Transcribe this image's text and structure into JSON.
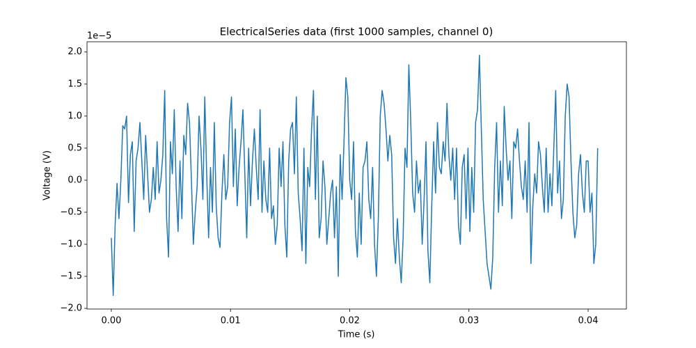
{
  "chart_data": {
    "type": "line",
    "title": "ElectricalSeries data (first 1000 samples, channel 0)",
    "xlabel": "Time (s)",
    "ylabel": "Voltage (V)",
    "y_offset_label": "1e−5",
    "color": "#1f77b4",
    "xlim": [
      -0.00204,
      0.04321
    ],
    "ylim": [
      -2.01,
      2.16
    ],
    "xticks": [
      {
        "value": 0,
        "label": "0.00"
      },
      {
        "value": 0.01,
        "label": "0.01"
      },
      {
        "value": 0.02,
        "label": "0.02"
      },
      {
        "value": 0.03,
        "label": "0.03"
      },
      {
        "value": 0.04,
        "label": "0.04"
      }
    ],
    "yticks": [
      {
        "value": -2,
        "label": "−2.0"
      },
      {
        "value": -1.5,
        "label": "−1.5"
      },
      {
        "value": -1,
        "label": "−1.0"
      },
      {
        "value": -0.5,
        "label": "−0.5"
      },
      {
        "value": 0,
        "label": "0.0"
      },
      {
        "value": 0.5,
        "label": "0.5"
      },
      {
        "value": 1,
        "label": "1.0"
      },
      {
        "value": 1.5,
        "label": "1.5"
      },
      {
        "value": 2,
        "label": "2.0"
      }
    ],
    "x": [
      0,
      0.00016,
      0.00032,
      0.00048,
      0.00064,
      0.0008,
      0.00096,
      0.00112,
      0.00128,
      0.00144,
      0.0016,
      0.00176,
      0.00192,
      0.00208,
      0.00224,
      0.0024,
      0.00256,
      0.00272,
      0.00288,
      0.00304,
      0.0032,
      0.00336,
      0.00352,
      0.00368,
      0.00384,
      0.004,
      0.00416,
      0.00432,
      0.00448,
      0.00464,
      0.0048,
      0.00496,
      0.00512,
      0.00528,
      0.00544,
      0.0056,
      0.00576,
      0.00592,
      0.00608,
      0.00624,
      0.0064,
      0.00656,
      0.00672,
      0.00688,
      0.00704,
      0.0072,
      0.00736,
      0.00752,
      0.00768,
      0.00784,
      0.008,
      0.00816,
      0.00832,
      0.00848,
      0.00864,
      0.0088,
      0.00896,
      0.00912,
      0.00928,
      0.00944,
      0.0096,
      0.00976,
      0.00992,
      0.01008,
      0.01024,
      0.0104,
      0.01056,
      0.01072,
      0.01088,
      0.01104,
      0.0112,
      0.01136,
      0.01152,
      0.01168,
      0.01184,
      0.012,
      0.01216,
      0.01232,
      0.01248,
      0.01264,
      0.0128,
      0.01296,
      0.01312,
      0.01328,
      0.01344,
      0.0136,
      0.01376,
      0.01392,
      0.01408,
      0.01424,
      0.0144,
      0.01456,
      0.01472,
      0.01488,
      0.01504,
      0.0152,
      0.01536,
      0.01552,
      0.01568,
      0.01584,
      0.016,
      0.01616,
      0.01632,
      0.01648,
      0.01664,
      0.0168,
      0.01696,
      0.01712,
      0.01728,
      0.01744,
      0.0176,
      0.01776,
      0.01792,
      0.01808,
      0.01824,
      0.0184,
      0.01856,
      0.01872,
      0.01888,
      0.01904,
      0.0192,
      0.01936,
      0.01952,
      0.01968,
      0.01984,
      0.02,
      0.02016,
      0.02032,
      0.02048,
      0.02064,
      0.0208,
      0.02096,
      0.02112,
      0.02128,
      0.02144,
      0.0216,
      0.02176,
      0.02192,
      0.02208,
      0.02224,
      0.0224,
      0.02256,
      0.02272,
      0.02288,
      0.02304,
      0.0232,
      0.02336,
      0.02352,
      0.02368,
      0.02384,
      0.024,
      0.02416,
      0.02432,
      0.02448,
      0.02464,
      0.0248,
      0.02496,
      0.02512,
      0.02528,
      0.02544,
      0.0256,
      0.02576,
      0.02592,
      0.02608,
      0.02624,
      0.0264,
      0.02656,
      0.02672,
      0.02688,
      0.02704,
      0.0272,
      0.02736,
      0.02752,
      0.02768,
      0.02784,
      0.028,
      0.02816,
      0.02832,
      0.02848,
      0.02864,
      0.0288,
      0.02896,
      0.02912,
      0.02928,
      0.02944,
      0.0296,
      0.02976,
      0.02992,
      0.03008,
      0.03024,
      0.0304,
      0.03056,
      0.03072,
      0.03088,
      0.03104,
      0.0312,
      0.03136,
      0.03152,
      0.03168,
      0.03184,
      0.032,
      0.03216,
      0.03232,
      0.03248,
      0.03264,
      0.0328,
      0.03296,
      0.03312,
      0.03328,
      0.03344,
      0.0336,
      0.03376,
      0.03392,
      0.03408,
      0.03424,
      0.0344,
      0.03456,
      0.03472,
      0.03488,
      0.03504,
      0.0352,
      0.03536,
      0.03552,
      0.03568,
      0.03584,
      0.036,
      0.03616,
      0.03632,
      0.03648,
      0.03664,
      0.0368,
      0.03696,
      0.03712,
      0.03728,
      0.03744,
      0.0376,
      0.03776,
      0.03792,
      0.03808,
      0.03824,
      0.0384,
      0.03856,
      0.03872,
      0.03888,
      0.03904,
      0.0392,
      0.03936,
      0.03952,
      0.03968,
      0.03984,
      0.04,
      0.04016,
      0.04032,
      0.04048,
      0.04064,
      0.0408
    ],
    "values": [
      -0.9,
      -1.8,
      -0.7,
      -0.05,
      -0.6,
      0.0,
      0.85,
      0.8,
      1.0,
      -0.35,
      0.4,
      0.6,
      -0.8,
      0.3,
      0.5,
      0.9,
      0.3,
      -0.3,
      0.7,
      0.1,
      -0.5,
      -0.3,
      0.2,
      -0.3,
      0.6,
      -0.2,
      0.0,
      0.4,
      1.4,
      -0.6,
      -1.2,
      0.6,
      0.1,
      1.1,
      -0.1,
      -0.8,
      0.3,
      -0.6,
      0.7,
      0.4,
      1.2,
      0.9,
      0.0,
      -1.0,
      -0.5,
      -0.1,
      1.0,
      0.5,
      -0.3,
      1.3,
      0.1,
      -0.9,
      0.2,
      -0.5,
      0.9,
      -0.4,
      -0.9,
      -1.05,
      -0.2,
      0.4,
      -0.3,
      -0.1,
      0.9,
      1.3,
      -0.1,
      0.8,
      -0.4,
      0.2,
      0.6,
      1.1,
      0.1,
      -0.9,
      0.5,
      -0.4,
      0.3,
      0.8,
      0.2,
      -0.3,
      1.1,
      -0.5,
      0.3,
      -0.3,
      -0.5,
      0.5,
      -0.6,
      -0.4,
      -1.0,
      -0.7,
      0.5,
      -0.1,
      0.6,
      -0.7,
      -1.2,
      0.3,
      0.8,
      0.9,
      0.1,
      1.3,
      -0.2,
      -0.6,
      -1.1,
      0.5,
      -1.3,
      0.2,
      -0.1,
      0.8,
      1.4,
      -0.3,
      1.0,
      -0.9,
      -0.6,
      0.3,
      -0.1,
      -1.0,
      -0.6,
      -0.2,
      0.0,
      -0.9,
      -0.1,
      -1.5,
      0.4,
      -0.3,
      0.6,
      1.6,
      1.3,
      0.0,
      -0.3,
      0.6,
      -0.8,
      -1.2,
      -0.2,
      -1.0,
      0.2,
      0.3,
      0.6,
      -0.3,
      -0.6,
      0.2,
      -1.0,
      -1.5,
      -0.6,
      1.0,
      1.4,
      1.2,
      0.8,
      0.3,
      0.7,
      0.4,
      -0.9,
      -1.3,
      -0.6,
      -1.2,
      -1.6,
      -0.9,
      0.5,
      0.2,
      1.8,
      0.9,
      -0.2,
      -0.5,
      0.3,
      -0.2,
      0.0,
      -1.0,
      -0.3,
      0.6,
      -1.1,
      -1.6,
      -0.4,
      0.6,
      -0.2,
      0.9,
      0.2,
      0.1,
      0.6,
      0.3,
      1.2,
      0.4,
      0.0,
      0.5,
      -0.3,
      0.5,
      -0.7,
      -1.0,
      0.2,
      0.4,
      -0.6,
      0.5,
      -0.8,
      0.2,
      -0.5,
      0.9,
      1.1,
      1.95,
      0.8,
      -0.3,
      -0.8,
      -1.3,
      -1.5,
      -1.7,
      -1.2,
      0.2,
      0.9,
      -0.5,
      0.3,
      -0.4,
      1.15,
      0.5,
      0.0,
      0.3,
      -0.6,
      0.6,
      0.5,
      0.8,
      0.3,
      -0.1,
      -0.3,
      0.3,
      -0.5,
      0.9,
      -1.3,
      -0.4,
      0.1,
      -0.2,
      0.6,
      0.4,
      -0.1,
      -0.5,
      0.5,
      -0.5,
      0.1,
      -0.4,
      0.5,
      1.4,
      -0.2,
      0.3,
      -0.6,
      -0.3,
      1.0,
      1.5,
      1.3,
      0.3,
      -0.5,
      -0.9,
      -0.7,
      0.1,
      0.4,
      -0.2,
      -0.5,
      0.3,
      0.3,
      -0.5,
      -0.2,
      -1.3,
      -1.0,
      0.5
    ]
  }
}
